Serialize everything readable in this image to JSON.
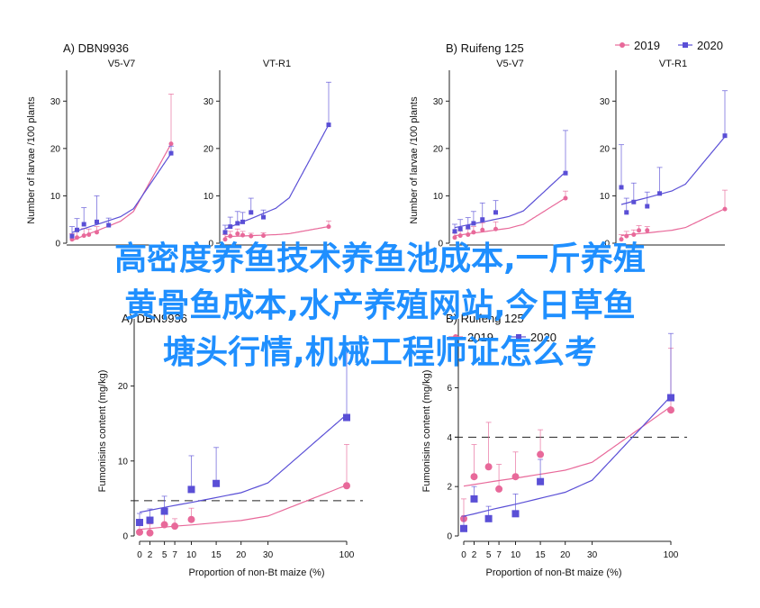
{
  "overlay_text": [
    "高密度养鱼技术养鱼池成本,一斤养殖",
    "黄骨鱼成本,水产养殖网站,今日草鱼",
    "塘头行情,机械工程师证怎么考"
  ],
  "colors": {
    "2019": "#e8699a",
    "2020": "#5a4fd6"
  },
  "chart_data": [
    {
      "type": "scatter",
      "panel": "A) DBN9936",
      "subtitle": "V5-V7",
      "ylabel": "Number of larvae /100 plants",
      "xlabel": "",
      "xlim": [
        0,
        100
      ],
      "ylim": [
        0,
        35
      ],
      "xticks": [],
      "yticks": [
        0,
        10,
        20,
        30
      ],
      "series": [
        {
          "name": "2019",
          "x": [
            0,
            2,
            5,
            7,
            10,
            100
          ],
          "y": [
            0.8,
            1.2,
            1.6,
            1.8,
            2.3,
            21.0
          ],
          "err": [
            1.2,
            1.5,
            1.5,
            1.2,
            1.2,
            10.5
          ]
        },
        {
          "name": "2020",
          "x": [
            0,
            2,
            5,
            10,
            15,
            100
          ],
          "y": [
            1.5,
            2.8,
            4.0,
            4.5,
            3.8,
            19.0
          ],
          "err": [
            2.0,
            2.4,
            3.5,
            5.5,
            1.5,
            1.5
          ]
        }
      ]
    },
    {
      "type": "scatter",
      "panel": "",
      "subtitle": "VT-R1",
      "ylabel": "",
      "xlabel": "",
      "xlim": [
        0,
        100
      ],
      "ylim": [
        0,
        35
      ],
      "xticks": [],
      "yticks": [
        0,
        10,
        20,
        30
      ],
      "series": [
        {
          "name": "2019",
          "x": [
            0,
            2,
            5,
            7,
            10,
            15,
            100
          ],
          "y": [
            0.8,
            1.5,
            2.0,
            1.7,
            1.5,
            1.6,
            3.5
          ],
          "err": [
            1.0,
            1.0,
            1.0,
            0.8,
            0.6,
            0.6,
            1.2
          ]
        },
        {
          "name": "2020",
          "x": [
            0,
            2,
            5,
            7,
            10,
            15,
            100
          ],
          "y": [
            2.3,
            3.5,
            4.2,
            4.5,
            6.5,
            5.5,
            25.0
          ],
          "err": [
            1.5,
            2.0,
            2.5,
            2.0,
            3.0,
            1.5,
            9.0
          ]
        }
      ]
    },
    {
      "type": "scatter",
      "panel": "B) Ruifeng 125",
      "subtitle": "V5-V7",
      "ylabel": "Number of larvae /100 plants",
      "xlabel": "",
      "xlim": [
        0,
        100
      ],
      "ylim": [
        0,
        35
      ],
      "xticks": [],
      "yticks": [
        0,
        10,
        20,
        30
      ],
      "series": [
        {
          "name": "2019",
          "x": [
            0,
            2,
            5,
            7,
            10,
            15,
            100
          ],
          "y": [
            1.2,
            1.6,
            1.8,
            2.3,
            2.8,
            3.0,
            9.5
          ],
          "err": [
            1.0,
            1.0,
            1.2,
            1.2,
            1.5,
            1.5,
            1.5
          ]
        },
        {
          "name": "2020",
          "x": [
            0,
            2,
            5,
            7,
            10,
            15,
            100
          ],
          "y": [
            2.5,
            3.0,
            3.4,
            4.2,
            5.0,
            6.5,
            14.8
          ],
          "err": [
            1.5,
            2.0,
            2.0,
            2.5,
            3.5,
            2.5,
            9.0
          ]
        }
      ]
    },
    {
      "type": "scatter",
      "panel": "",
      "subtitle": "VT-R1",
      "ylabel": "",
      "xlabel": "",
      "xlim": [
        0,
        100
      ],
      "ylim": [
        0,
        35
      ],
      "xticks": [],
      "yticks": [
        0,
        10,
        20,
        30
      ],
      "series": [
        {
          "name": "2019",
          "x": [
            0,
            2,
            5,
            7,
            10,
            100
          ],
          "y": [
            0.8,
            1.5,
            1.8,
            2.7,
            2.7,
            7.2
          ],
          "err": [
            1.0,
            1.0,
            1.0,
            1.0,
            0.8,
            4.0
          ]
        },
        {
          "name": "2020",
          "x": [
            0,
            2,
            5,
            10,
            15,
            100
          ],
          "y": [
            11.8,
            6.5,
            8.7,
            7.8,
            10.5,
            22.7
          ],
          "err": [
            9.0,
            3.0,
            4.0,
            3.0,
            5.5,
            9.5
          ]
        }
      ]
    },
    {
      "type": "scatter",
      "panel": "A) DBN9936",
      "subtitle": "",
      "ylabel": "Fumonisins content (mg/kg)",
      "xlabel": "Proportion of non-Bt maize (%)",
      "xlim": [
        0,
        100
      ],
      "ylim": [
        0,
        28
      ],
      "xticks": [
        0,
        2,
        5,
        7,
        10,
        15,
        20,
        30,
        100
      ],
      "xtick_labels": [
        "0",
        "2",
        "5",
        "7",
        "10",
        "15",
        "20",
        "30",
        "100"
      ],
      "yticks": [
        0,
        10,
        20
      ],
      "threshold": 4.7,
      "series": [
        {
          "name": "2019",
          "x": [
            0,
            2,
            5,
            7,
            10,
            100
          ],
          "y": [
            0.5,
            0.4,
            1.5,
            1.3,
            2.2,
            6.7
          ],
          "err": [
            1.5,
            1.2,
            1.5,
            1.0,
            1.5,
            5.5
          ]
        },
        {
          "name": "2020",
          "x": [
            0,
            2,
            5,
            10,
            15,
            100
          ],
          "y": [
            1.8,
            2.1,
            3.3,
            6.2,
            7.0,
            15.8
          ],
          "err": [
            1.2,
            1.5,
            2.0,
            4.5,
            4.8,
            9.0
          ]
        }
      ]
    },
    {
      "type": "scatter",
      "panel": "B) Ruifeng 125",
      "subtitle": "",
      "ylabel": "Fumonisins content (mg/kg)",
      "xlabel": "Proportion of non-Bt maize (%)",
      "xlim": [
        0,
        100
      ],
      "ylim": [
        0,
        8.5
      ],
      "xticks": [
        0,
        2,
        5,
        7,
        10,
        15,
        20,
        30,
        100
      ],
      "xtick_labels": [
        "0",
        "2",
        "5",
        "7",
        "10",
        "15",
        "20",
        "30",
        "100"
      ],
      "yticks": [
        0,
        2,
        4,
        6
      ],
      "threshold": 4.0,
      "series": [
        {
          "name": "2019",
          "x": [
            0,
            2,
            5,
            7,
            10,
            15,
            100
          ],
          "y": [
            0.7,
            2.4,
            2.8,
            1.9,
            2.4,
            3.3,
            5.1
          ],
          "err": [
            0.8,
            1.3,
            1.8,
            1.0,
            1.0,
            1.0,
            2.5
          ]
        },
        {
          "name": "2020",
          "x": [
            0,
            2,
            5,
            10,
            15,
            100
          ],
          "y": [
            0.3,
            1.5,
            0.7,
            0.9,
            2.2,
            5.6
          ],
          "err": [
            0.5,
            0.5,
            0.5,
            0.8,
            0.9,
            2.6
          ]
        }
      ]
    }
  ],
  "legends": [
    {
      "items": [
        {
          "name": "2019",
          "marker": "circle"
        },
        {
          "name": "2020",
          "marker": "square"
        }
      ]
    },
    {
      "items": [
        {
          "name": "2019",
          "marker": "circle"
        },
        {
          "name": "2020",
          "marker": "square"
        }
      ]
    }
  ]
}
